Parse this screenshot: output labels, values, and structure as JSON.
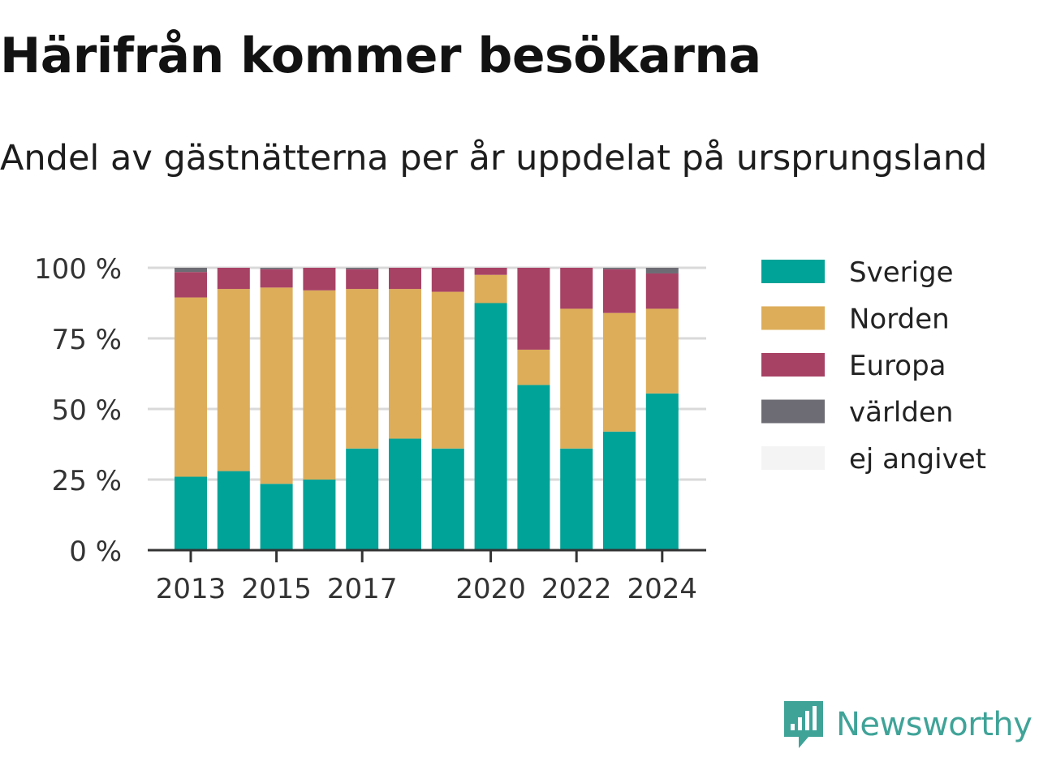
{
  "title": "Härifrån kommer besökarna",
  "subtitle": "Andel av gästnätterna per år uppdelat på ursprungsland",
  "brand": {
    "name": "Newsworthy",
    "icon": "newsworthy-logo-icon",
    "color": "#3fa398"
  },
  "chart_data": {
    "type": "bar",
    "stacked": true,
    "categories": [
      "2013",
      "2014",
      "2015",
      "2016",
      "2017",
      "2018",
      "2019",
      "2020",
      "2021",
      "2022",
      "2023",
      "2024"
    ],
    "x_tick_labels": [
      "2013",
      "2015",
      "2017",
      "2020",
      "2022",
      "2024"
    ],
    "y_ticks": [
      0,
      25,
      50,
      75,
      100
    ],
    "y_tick_labels": [
      "0 %",
      "25 %",
      "50 %",
      "75 %",
      "100 %"
    ],
    "ylim": [
      0,
      100
    ],
    "grid": true,
    "legend_position": "right",
    "series": [
      {
        "name": "Sverige",
        "color": "#00a398",
        "values": [
          26,
          28,
          23.5,
          25,
          36,
          39.5,
          36,
          87.5,
          58.5,
          36,
          42,
          55.5
        ]
      },
      {
        "name": "Norden",
        "color": "#ddad5a",
        "values": [
          63.5,
          64.5,
          69.5,
          67,
          56.5,
          53,
          55.5,
          10,
          12.5,
          49.5,
          42,
          30
        ]
      },
      {
        "name": "Europa",
        "color": "#a84265",
        "values": [
          9,
          7.5,
          6.5,
          8,
          7,
          7.5,
          8.5,
          2.5,
          29,
          14.5,
          15.5,
          12.5
        ]
      },
      {
        "name": "världen",
        "color": "#6d6c74",
        "values": [
          1.5,
          0,
          0.5,
          0,
          0.5,
          0,
          0,
          0,
          0,
          0,
          0.5,
          2
        ]
      },
      {
        "name": "ej angivet",
        "color": "#f4f4f4",
        "values": [
          0,
          0,
          0,
          0,
          0,
          0,
          0,
          0,
          0,
          0,
          0,
          0
        ]
      }
    ]
  }
}
